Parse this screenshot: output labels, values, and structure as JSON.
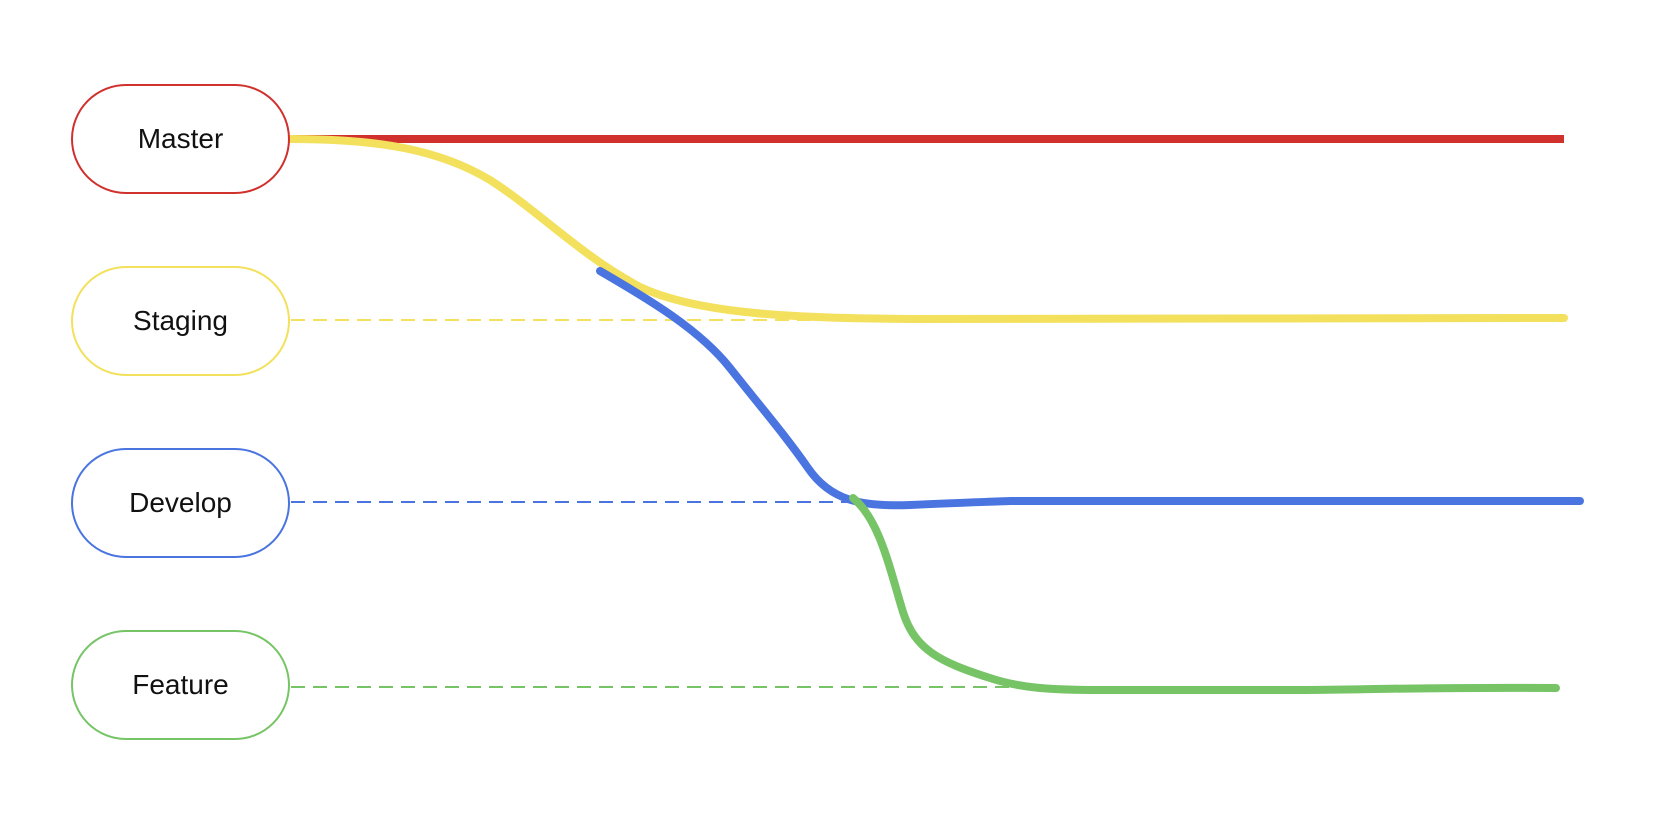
{
  "branches": [
    {
      "id": "master",
      "label": "Master",
      "color": "#d0312d"
    },
    {
      "id": "staging",
      "label": "Staging",
      "color": "#f3e05c"
    },
    {
      "id": "develop",
      "label": "Develop",
      "color": "#4a74e0"
    },
    {
      "id": "feature",
      "label": "Feature",
      "color": "#77c467"
    }
  ],
  "background": "#ffffff"
}
